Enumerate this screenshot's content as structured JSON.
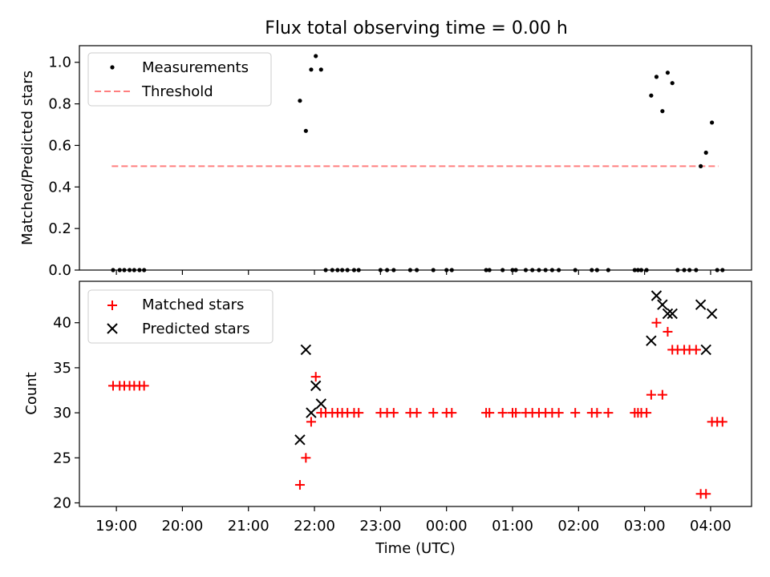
{
  "figure": {
    "title": "Flux total observing time = 0.00 h",
    "xlabel": "Time (UTC)",
    "x_tick_labels": [
      "19:00",
      "20:00",
      "21:00",
      "22:00",
      "23:00",
      "00:00",
      "01:00",
      "02:00",
      "03:00",
      "04:00"
    ],
    "x_tick_hours": [
      0,
      1,
      2,
      3,
      4,
      5,
      6,
      7,
      8,
      9
    ],
    "x_origin_label": "19:00",
    "xlim_hours": [
      -0.56,
      9.62
    ]
  },
  "chart_data": [
    {
      "type": "scatter",
      "panel": "top",
      "ylabel": "Matched/Predicted stars",
      "ylim": [
        0,
        1.08
      ],
      "yticks": [
        0.0,
        0.2,
        0.4,
        0.6,
        0.8,
        1.0
      ],
      "ytick_labels": [
        "0.0",
        "0.2",
        "0.4",
        "0.6",
        "0.8",
        "1.0"
      ],
      "legend_position": "top-left",
      "colors": {
        "measurements": "#000000",
        "threshold": "#ff7f7f"
      },
      "series": [
        {
          "name": "Measurements",
          "marker": "dot",
          "x_hours": [
            -0.05,
            0.05,
            0.12,
            0.2,
            0.27,
            0.35,
            0.42,
            2.78,
            2.87,
            2.95,
            3.02,
            3.1,
            3.17,
            3.27,
            3.35,
            3.42,
            3.5,
            3.6,
            3.67,
            4.0,
            4.1,
            4.2,
            4.45,
            4.55,
            4.8,
            5.0,
            5.08,
            5.6,
            5.65,
            5.85,
            6.0,
            6.05,
            6.2,
            6.3,
            6.4,
            6.5,
            6.6,
            6.7,
            6.95,
            7.2,
            7.28,
            7.45,
            7.85,
            7.9,
            7.95,
            8.03,
            8.1,
            8.18,
            8.27,
            8.35,
            8.42,
            8.5,
            8.6,
            8.68,
            8.78,
            8.85,
            8.93,
            9.02,
            9.1,
            9.18
          ],
          "y": [
            0.0,
            0.0,
            0.0,
            0.0,
            0.0,
            0.0,
            0.0,
            0.815,
            0.67,
            0.965,
            1.03,
            0.965,
            0.0,
            0.0,
            0.0,
            0.0,
            0.0,
            0.0,
            0.0,
            0.0,
            0.0,
            0.0,
            0.0,
            0.0,
            0.0,
            0.0,
            0.0,
            0.0,
            0.0,
            0.0,
            0.0,
            0.0,
            0.0,
            0.0,
            0.0,
            0.0,
            0.0,
            0.0,
            0.0,
            0.0,
            0.0,
            0.0,
            0.0,
            0.0,
            0.0,
            0.0,
            0.84,
            0.93,
            0.765,
            0.95,
            0.9,
            0.0,
            0.0,
            0.0,
            0.0,
            0.5,
            0.565,
            0.71,
            0.0,
            0.0
          ]
        },
        {
          "name": "Threshold",
          "style": "dashed-line",
          "x_hours": [
            -0.07,
            9.12
          ],
          "y": [
            0.5,
            0.5
          ]
        }
      ]
    },
    {
      "type": "scatter",
      "panel": "bottom",
      "ylabel": "Count",
      "ylim": [
        19.6,
        44.6
      ],
      "yticks": [
        20,
        25,
        30,
        35,
        40
      ],
      "ytick_labels": [
        "20",
        "25",
        "30",
        "35",
        "40"
      ],
      "legend_position": "top-left",
      "colors": {
        "matched": "#ff0000",
        "predicted": "#000000"
      },
      "series": [
        {
          "name": "Matched stars",
          "marker": "plus",
          "x_hours": [
            -0.05,
            0.05,
            0.12,
            0.2,
            0.27,
            0.35,
            0.42,
            2.78,
            2.87,
            2.95,
            3.02,
            3.1,
            3.17,
            3.27,
            3.35,
            3.42,
            3.5,
            3.6,
            3.67,
            4.0,
            4.1,
            4.2,
            4.45,
            4.55,
            4.8,
            5.0,
            5.08,
            5.6,
            5.65,
            5.85,
            6.0,
            6.05,
            6.2,
            6.3,
            6.4,
            6.5,
            6.6,
            6.7,
            6.95,
            7.2,
            7.28,
            7.45,
            7.85,
            7.9,
            7.95,
            8.03,
            8.1,
            8.18,
            8.27,
            8.35,
            8.42,
            8.5,
            8.6,
            8.68,
            8.78,
            8.85,
            8.93,
            9.02,
            9.1,
            9.18
          ],
          "y": [
            33,
            33,
            33,
            33,
            33,
            33,
            33,
            22,
            25,
            29,
            34,
            30,
            30,
            30,
            30,
            30,
            30,
            30,
            30,
            30,
            30,
            30,
            30,
            30,
            30,
            30,
            30,
            30,
            30,
            30,
            30,
            30,
            30,
            30,
            30,
            30,
            30,
            30,
            30,
            30,
            30,
            30,
            30,
            30,
            30,
            30,
            32,
            40,
            32,
            39,
            37,
            37,
            37,
            37,
            37,
            21,
            21,
            29,
            29,
            29
          ]
        },
        {
          "name": "Predicted stars",
          "marker": "x",
          "x_hours": [
            2.78,
            2.87,
            2.95,
            3.02,
            3.1,
            8.1,
            8.18,
            8.27,
            8.35,
            8.42,
            8.85,
            8.93,
            9.02
          ],
          "y": [
            27,
            37,
            30,
            33,
            31,
            38,
            43,
            42,
            41,
            41,
            42,
            37,
            41
          ]
        }
      ]
    }
  ]
}
